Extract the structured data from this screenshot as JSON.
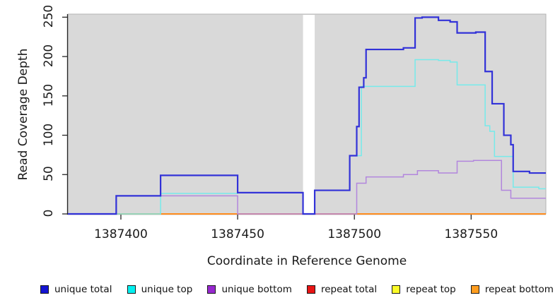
{
  "figure": {
    "x_axis_title": "Coordinate in Reference Genome",
    "y_axis_title": "Read Coverage Depth"
  },
  "chart_data": {
    "type": "line",
    "line_style": "step-after",
    "title": "",
    "xlabel": "Coordinate in Reference Genome",
    "ylabel": "Read Coverage Depth",
    "xlim": [
      1387377.3,
      1387582.0
    ],
    "ylim": [
      0,
      253.9
    ],
    "x_ticks": [
      1387400,
      1387450,
      1387500,
      1387550
    ],
    "y_ticks": [
      0,
      50,
      100,
      150,
      200,
      250
    ],
    "grid": false,
    "legend_position": "bottom",
    "plot_bg_color": "#d9d9d9",
    "plot_border_color": "#b3b3b3",
    "axis_color": "#262626",
    "gap_region": {
      "x_start": 1387478,
      "x_end": 1387483,
      "color": "#ffffff",
      "note": "white no-data band"
    },
    "series": [
      {
        "name": "unique total",
        "line_color": "#3232d8",
        "legend_fill": "#1414d2",
        "stroke_width": 2.2,
        "z": 6,
        "points": [
          [
            1387377.3,
            0
          ],
          [
            1387398,
            23
          ],
          [
            1387417,
            49
          ],
          [
            1387450,
            27
          ],
          [
            1387478,
            0
          ],
          [
            1387483,
            30
          ],
          [
            1387498,
            74
          ],
          [
            1387501,
            111
          ],
          [
            1387502,
            161
          ],
          [
            1387504,
            173
          ],
          [
            1387505,
            209
          ],
          [
            1387521,
            211
          ],
          [
            1387526,
            249
          ],
          [
            1387529,
            250
          ],
          [
            1387536,
            246
          ],
          [
            1387541,
            244
          ],
          [
            1387544,
            230
          ],
          [
            1387552,
            231
          ],
          [
            1387556,
            181
          ],
          [
            1387559,
            140
          ],
          [
            1387564,
            100
          ],
          [
            1387567,
            88
          ],
          [
            1387568,
            54
          ],
          [
            1387575,
            52
          ]
        ]
      },
      {
        "name": "unique top",
        "line_color": "#76eaea",
        "legend_fill": "#00f0f0",
        "stroke_width": 1.5,
        "z": 5,
        "points": [
          [
            1387377.3,
            0
          ],
          [
            1387417,
            26
          ],
          [
            1387450,
            27
          ],
          [
            1387478,
            0
          ],
          [
            1387483,
            30
          ],
          [
            1387498,
            74
          ],
          [
            1387503,
            162
          ],
          [
            1387526,
            196
          ],
          [
            1387536,
            195
          ],
          [
            1387541,
            193
          ],
          [
            1387544,
            164
          ],
          [
            1387556,
            112
          ],
          [
            1387558,
            105
          ],
          [
            1387560,
            73
          ],
          [
            1387568,
            34
          ],
          [
            1387579,
            32
          ]
        ]
      },
      {
        "name": "unique bottom",
        "line_color": "#b286dd",
        "legend_fill": "#9728cf",
        "stroke_width": 1.5,
        "z": 4,
        "points": [
          [
            1387377.3,
            0
          ],
          [
            1387398,
            23
          ],
          [
            1387450,
            0
          ],
          [
            1387501,
            39
          ],
          [
            1387505,
            47
          ],
          [
            1387521,
            50
          ],
          [
            1387527,
            55
          ],
          [
            1387536,
            52
          ],
          [
            1387544,
            67
          ],
          [
            1387551,
            68
          ],
          [
            1387563,
            30
          ],
          [
            1387567,
            20
          ]
        ]
      },
      {
        "name": "repeat total",
        "line_color": "#e05570",
        "legend_fill": "#e81414",
        "stroke_width": 1.5,
        "z": 1,
        "points": [
          [
            1387377.3,
            0
          ]
        ]
      },
      {
        "name": "repeat top",
        "line_color": "#f0f032",
        "legend_fill": "#fbfb28",
        "stroke_width": 1.5,
        "z": 2,
        "points": [
          [
            1387377.3,
            0
          ]
        ]
      },
      {
        "name": "repeat bottom",
        "line_color": "#ff8d1e",
        "legend_fill": "#ff9d20",
        "stroke_width": 2.0,
        "z": 3,
        "points": [
          [
            1387377.3,
            0
          ]
        ]
      }
    ]
  }
}
